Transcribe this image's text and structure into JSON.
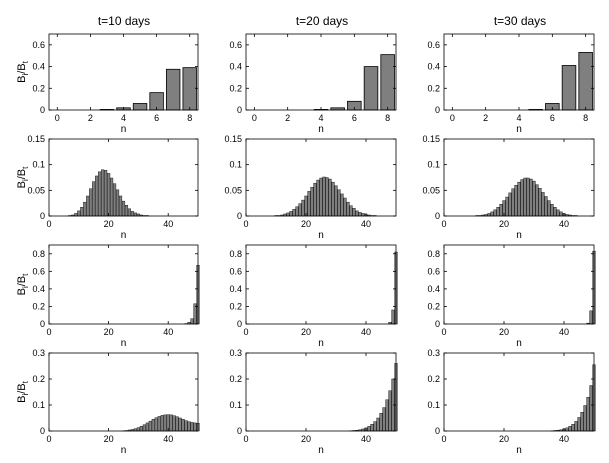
{
  "figure": {
    "col_titles": [
      "t=10 days",
      "t=20 days",
      "t=30 days"
    ],
    "ylabel_main": "B",
    "ylabel_sub1": "i",
    "ylabel_sep": "/B",
    "ylabel_sub2": "t",
    "xlabel": "n"
  },
  "colors": {
    "bar_fill": "#7f7f7f",
    "bar_stroke": "#000000",
    "axis": "#000000"
  },
  "chart_data": [
    {
      "type": "bar",
      "row": 0,
      "col": 0,
      "title": "t=10 days",
      "xlabel": "n",
      "ylabel": "Bi/Bt",
      "xlim": [
        -0.5,
        8.5
      ],
      "ylim": [
        0,
        0.7
      ],
      "xticks": [
        0,
        2,
        4,
        6,
        8
      ],
      "yticks": [
        0,
        0.2,
        0.4,
        0.6
      ],
      "x": [
        0,
        1,
        2,
        3,
        4,
        5,
        6,
        7,
        8
      ],
      "values": [
        0.0,
        0.0,
        0.0,
        0.005,
        0.02,
        0.06,
        0.16,
        0.375,
        0.39
      ]
    },
    {
      "type": "bar",
      "row": 0,
      "col": 1,
      "title": "t=20 days",
      "xlabel": "n",
      "ylabel": "",
      "xlim": [
        -0.5,
        8.5
      ],
      "ylim": [
        0,
        0.7
      ],
      "xticks": [
        0,
        2,
        4,
        6,
        8
      ],
      "yticks": [
        0,
        0.2,
        0.4,
        0.6
      ],
      "x": [
        0,
        1,
        2,
        3,
        4,
        5,
        6,
        7,
        8
      ],
      "values": [
        0.0,
        0.0,
        0.0,
        0.0,
        0.005,
        0.02,
        0.08,
        0.4,
        0.51
      ]
    },
    {
      "type": "bar",
      "row": 0,
      "col": 2,
      "title": "t=30 days",
      "xlabel": "n",
      "ylabel": "",
      "xlim": [
        -0.5,
        8.5
      ],
      "ylim": [
        0,
        0.7
      ],
      "xticks": [
        0,
        2,
        4,
        6,
        8
      ],
      "yticks": [
        0,
        0.2,
        0.4,
        0.6
      ],
      "x": [
        0,
        1,
        2,
        3,
        4,
        5,
        6,
        7,
        8
      ],
      "values": [
        0.0,
        0.0,
        0.0,
        0.0,
        0.0,
        0.005,
        0.06,
        0.41,
        0.53
      ]
    },
    {
      "type": "bar",
      "row": 1,
      "col": 0,
      "title": "",
      "xlabel": "n",
      "ylabel": "Bi/Bt",
      "xlim": [
        0,
        50
      ],
      "ylim": [
        0,
        0.15
      ],
      "xticks": [
        0,
        20,
        40
      ],
      "yticks": [
        0,
        0.05,
        0.1,
        0.15
      ],
      "x": [
        1,
        2,
        3,
        4,
        5,
        6,
        7,
        8,
        9,
        10,
        11,
        12,
        13,
        14,
        15,
        16,
        17,
        18,
        19,
        20,
        21,
        22,
        23,
        24,
        25,
        26,
        27,
        28,
        29,
        30,
        31,
        32,
        33,
        34,
        35,
        36,
        37,
        38,
        39,
        40,
        41,
        42,
        43,
        44,
        45,
        46,
        47,
        48,
        49,
        50
      ],
      "values": [
        0.0,
        0.0,
        0.0,
        0.0,
        0.0,
        0.0,
        0.001,
        0.002,
        0.005,
        0.01,
        0.017,
        0.027,
        0.039,
        0.053,
        0.067,
        0.078,
        0.086,
        0.09,
        0.089,
        0.083,
        0.074,
        0.063,
        0.051,
        0.039,
        0.029,
        0.021,
        0.014,
        0.009,
        0.006,
        0.004,
        0.002,
        0.001,
        0.001,
        0.0,
        0.0,
        0.0,
        0.0,
        0.0,
        0.0,
        0.0,
        0.0,
        0.0,
        0.0,
        0.0,
        0.0,
        0.0,
        0.0,
        0.0,
        0.0,
        0.0
      ]
    },
    {
      "type": "bar",
      "row": 1,
      "col": 1,
      "title": "",
      "xlabel": "n",
      "ylabel": "",
      "xlim": [
        0,
        50
      ],
      "ylim": [
        0,
        0.15
      ],
      "xticks": [
        0,
        20,
        40
      ],
      "yticks": [
        0,
        0.05,
        0.1,
        0.15
      ],
      "x": [
        1,
        2,
        3,
        4,
        5,
        6,
        7,
        8,
        9,
        10,
        11,
        12,
        13,
        14,
        15,
        16,
        17,
        18,
        19,
        20,
        21,
        22,
        23,
        24,
        25,
        26,
        27,
        28,
        29,
        30,
        31,
        32,
        33,
        34,
        35,
        36,
        37,
        38,
        39,
        40,
        41,
        42,
        43,
        44,
        45,
        46,
        47,
        48,
        49,
        50
      ],
      "values": [
        0.0,
        0.0,
        0.0,
        0.0,
        0.0,
        0.0,
        0.0,
        0.0,
        0.0,
        0.001,
        0.001,
        0.002,
        0.004,
        0.006,
        0.009,
        0.013,
        0.018,
        0.024,
        0.031,
        0.039,
        0.048,
        0.056,
        0.064,
        0.07,
        0.074,
        0.076,
        0.075,
        0.072,
        0.066,
        0.059,
        0.051,
        0.043,
        0.035,
        0.027,
        0.02,
        0.015,
        0.01,
        0.007,
        0.005,
        0.003,
        0.002,
        0.001,
        0.001,
        0.0,
        0.0,
        0.0,
        0.0,
        0.0,
        0.0,
        0.0
      ]
    },
    {
      "type": "bar",
      "row": 1,
      "col": 2,
      "title": "",
      "xlabel": "n",
      "ylabel": "",
      "xlim": [
        0,
        50
      ],
      "ylim": [
        0,
        0.15
      ],
      "xticks": [
        0,
        20,
        40
      ],
      "yticks": [
        0,
        0.05,
        0.1,
        0.15
      ],
      "x": [
        1,
        2,
        3,
        4,
        5,
        6,
        7,
        8,
        9,
        10,
        11,
        12,
        13,
        14,
        15,
        16,
        17,
        18,
        19,
        20,
        21,
        22,
        23,
        24,
        25,
        26,
        27,
        28,
        29,
        30,
        31,
        32,
        33,
        34,
        35,
        36,
        37,
        38,
        39,
        40,
        41,
        42,
        43,
        44,
        45,
        46,
        47,
        48,
        49,
        50
      ],
      "values": [
        0.0,
        0.0,
        0.0,
        0.0,
        0.0,
        0.0,
        0.0,
        0.0,
        0.0,
        0.0,
        0.001,
        0.001,
        0.002,
        0.003,
        0.005,
        0.008,
        0.012,
        0.017,
        0.023,
        0.03,
        0.037,
        0.045,
        0.053,
        0.06,
        0.066,
        0.071,
        0.074,
        0.074,
        0.072,
        0.068,
        0.061,
        0.054,
        0.046,
        0.038,
        0.03,
        0.023,
        0.017,
        0.012,
        0.008,
        0.005,
        0.003,
        0.002,
        0.001,
        0.001,
        0.0,
        0.0,
        0.0,
        0.0,
        0.0,
        0.0
      ]
    },
    {
      "type": "bar",
      "row": 2,
      "col": 0,
      "title": "",
      "xlabel": "n",
      "ylabel": "Bi/Bt",
      "xlim": [
        0,
        50
      ],
      "ylim": [
        0,
        0.9
      ],
      "xticks": [
        0,
        20,
        40
      ],
      "yticks": [
        0,
        0.2,
        0.4,
        0.6,
        0.8
      ],
      "x": [
        1,
        2,
        3,
        4,
        5,
        6,
        7,
        8,
        9,
        10,
        11,
        12,
        13,
        14,
        15,
        16,
        17,
        18,
        19,
        20,
        21,
        22,
        23,
        24,
        25,
        26,
        27,
        28,
        29,
        30,
        31,
        32,
        33,
        34,
        35,
        36,
        37,
        38,
        39,
        40,
        41,
        42,
        43,
        44,
        45,
        46,
        47,
        48,
        49,
        50
      ],
      "values": [
        0,
        0,
        0,
        0,
        0,
        0,
        0,
        0,
        0,
        0,
        0,
        0,
        0,
        0,
        0,
        0,
        0,
        0,
        0,
        0,
        0,
        0,
        0,
        0,
        0,
        0,
        0,
        0,
        0,
        0,
        0,
        0,
        0,
        0,
        0,
        0,
        0,
        0,
        0,
        0,
        0,
        0,
        0,
        0,
        0,
        0.005,
        0.02,
        0.06,
        0.23,
        0.67
      ]
    },
    {
      "type": "bar",
      "row": 2,
      "col": 1,
      "title": "",
      "xlabel": "n",
      "ylabel": "",
      "xlim": [
        0,
        50
      ],
      "ylim": [
        0,
        0.9
      ],
      "xticks": [
        0,
        20,
        40
      ],
      "yticks": [
        0,
        0.2,
        0.4,
        0.6,
        0.8
      ],
      "x": [
        1,
        2,
        3,
        4,
        5,
        6,
        7,
        8,
        9,
        10,
        11,
        12,
        13,
        14,
        15,
        16,
        17,
        18,
        19,
        20,
        21,
        22,
        23,
        24,
        25,
        26,
        27,
        28,
        29,
        30,
        31,
        32,
        33,
        34,
        35,
        36,
        37,
        38,
        39,
        40,
        41,
        42,
        43,
        44,
        45,
        46,
        47,
        48,
        49,
        50
      ],
      "values": [
        0,
        0,
        0,
        0,
        0,
        0,
        0,
        0,
        0,
        0,
        0,
        0,
        0,
        0,
        0,
        0,
        0,
        0,
        0,
        0,
        0,
        0,
        0,
        0,
        0,
        0,
        0,
        0,
        0,
        0,
        0,
        0,
        0,
        0,
        0,
        0,
        0,
        0,
        0,
        0,
        0,
        0,
        0,
        0,
        0,
        0,
        0,
        0.02,
        0.16,
        0.82
      ]
    },
    {
      "type": "bar",
      "row": 2,
      "col": 2,
      "title": "",
      "xlabel": "n",
      "ylabel": "",
      "xlim": [
        0,
        50
      ],
      "ylim": [
        0,
        0.9
      ],
      "xticks": [
        0,
        20,
        40
      ],
      "yticks": [
        0,
        0.2,
        0.4,
        0.6,
        0.8
      ],
      "x": [
        1,
        2,
        3,
        4,
        5,
        6,
        7,
        8,
        9,
        10,
        11,
        12,
        13,
        14,
        15,
        16,
        17,
        18,
        19,
        20,
        21,
        22,
        23,
        24,
        25,
        26,
        27,
        28,
        29,
        30,
        31,
        32,
        33,
        34,
        35,
        36,
        37,
        38,
        39,
        40,
        41,
        42,
        43,
        44,
        45,
        46,
        47,
        48,
        49,
        50
      ],
      "values": [
        0,
        0,
        0,
        0,
        0,
        0,
        0,
        0,
        0,
        0,
        0,
        0,
        0,
        0,
        0,
        0,
        0,
        0,
        0,
        0,
        0,
        0,
        0,
        0,
        0,
        0,
        0,
        0,
        0,
        0,
        0,
        0,
        0,
        0,
        0,
        0,
        0,
        0,
        0,
        0,
        0,
        0,
        0,
        0,
        0,
        0,
        0,
        0.01,
        0.15,
        0.83
      ]
    },
    {
      "type": "bar",
      "row": 3,
      "col": 0,
      "title": "",
      "xlabel": "n",
      "ylabel": "Bi/Bt",
      "xlim": [
        0,
        50
      ],
      "ylim": [
        0,
        0.3
      ],
      "xticks": [
        0,
        20,
        40
      ],
      "yticks": [
        0,
        0.1,
        0.2,
        0.3
      ],
      "x": [
        1,
        2,
        3,
        4,
        5,
        6,
        7,
        8,
        9,
        10,
        11,
        12,
        13,
        14,
        15,
        16,
        17,
        18,
        19,
        20,
        21,
        22,
        23,
        24,
        25,
        26,
        27,
        28,
        29,
        30,
        31,
        32,
        33,
        34,
        35,
        36,
        37,
        38,
        39,
        40,
        41,
        42,
        43,
        44,
        45,
        46,
        47,
        48,
        49,
        50
      ],
      "values": [
        0,
        0,
        0,
        0,
        0,
        0,
        0,
        0,
        0,
        0,
        0,
        0,
        0,
        0,
        0,
        0,
        0,
        0,
        0,
        0,
        0,
        0,
        0,
        0,
        0.001,
        0.002,
        0.004,
        0.006,
        0.009,
        0.013,
        0.018,
        0.024,
        0.031,
        0.038,
        0.045,
        0.051,
        0.056,
        0.06,
        0.062,
        0.063,
        0.062,
        0.059,
        0.055,
        0.05,
        0.045,
        0.04,
        0.036,
        0.033,
        0.031,
        0.03
      ]
    },
    {
      "type": "bar",
      "row": 3,
      "col": 1,
      "title": "",
      "xlabel": "n",
      "ylabel": "",
      "xlim": [
        0,
        50
      ],
      "ylim": [
        0,
        0.3
      ],
      "xticks": [
        0,
        20,
        40
      ],
      "yticks": [
        0,
        0.1,
        0.2,
        0.3
      ],
      "x": [
        1,
        2,
        3,
        4,
        5,
        6,
        7,
        8,
        9,
        10,
        11,
        12,
        13,
        14,
        15,
        16,
        17,
        18,
        19,
        20,
        21,
        22,
        23,
        24,
        25,
        26,
        27,
        28,
        29,
        30,
        31,
        32,
        33,
        34,
        35,
        36,
        37,
        38,
        39,
        40,
        41,
        42,
        43,
        44,
        45,
        46,
        47,
        48,
        49,
        50
      ],
      "values": [
        0,
        0,
        0,
        0,
        0,
        0,
        0,
        0,
        0,
        0,
        0,
        0,
        0,
        0,
        0,
        0,
        0,
        0,
        0,
        0,
        0,
        0,
        0,
        0,
        0,
        0,
        0,
        0,
        0,
        0,
        0,
        0,
        0,
        0,
        0.001,
        0.002,
        0.003,
        0.005,
        0.008,
        0.012,
        0.018,
        0.026,
        0.036,
        0.05,
        0.068,
        0.09,
        0.12,
        0.155,
        0.2,
        0.26
      ]
    },
    {
      "type": "bar",
      "row": 3,
      "col": 2,
      "title": "",
      "xlabel": "n",
      "ylabel": "",
      "xlim": [
        0,
        50
      ],
      "ylim": [
        0,
        0.3
      ],
      "xticks": [
        0,
        20,
        40
      ],
      "yticks": [
        0,
        0.1,
        0.2,
        0.3
      ],
      "x": [
        1,
        2,
        3,
        4,
        5,
        6,
        7,
        8,
        9,
        10,
        11,
        12,
        13,
        14,
        15,
        16,
        17,
        18,
        19,
        20,
        21,
        22,
        23,
        24,
        25,
        26,
        27,
        28,
        29,
        30,
        31,
        32,
        33,
        34,
        35,
        36,
        37,
        38,
        39,
        40,
        41,
        42,
        43,
        44,
        45,
        46,
        47,
        48,
        49,
        50
      ],
      "values": [
        0,
        0,
        0,
        0,
        0,
        0,
        0,
        0,
        0,
        0,
        0,
        0,
        0,
        0,
        0,
        0,
        0,
        0,
        0,
        0,
        0,
        0,
        0,
        0,
        0,
        0,
        0,
        0,
        0,
        0,
        0,
        0,
        0,
        0,
        0,
        0.001,
        0.002,
        0.003,
        0.005,
        0.008,
        0.012,
        0.018,
        0.026,
        0.037,
        0.052,
        0.072,
        0.098,
        0.13,
        0.175,
        0.255
      ]
    }
  ]
}
